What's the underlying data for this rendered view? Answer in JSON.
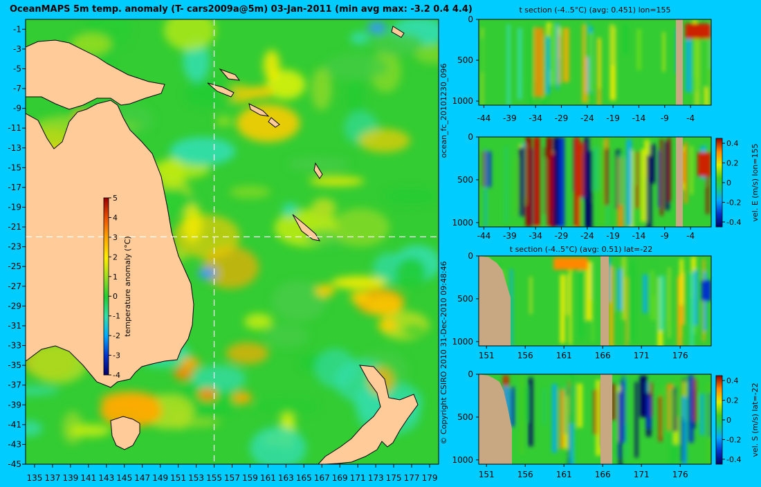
{
  "colors": {
    "background": "#00ccff",
    "land_map": "#ffcc99",
    "land_section": "#c8a882",
    "ocean_base": "#33cc33"
  },
  "texts": {
    "map_title": "OceanMAPS 5m temp. anomaly (T- cars2009a@5m) 03-Jan-2011 (min avg max: -3.2 0.4 4.4)",
    "side_left_upper": "ocean_fc_20101230_096",
    "side_left_lower": "© Copyright CSIRO 2010   31-Dec-2010 09:48:46"
  },
  "chart_data": [
    {
      "type": "heatmap",
      "title": "OceanMAPS 5m temp. anomaly (T- cars2009a@5m) 03-Jan-2011 (min avg max: -3.2 0.4 4.4)",
      "xticks": [
        "135",
        "137",
        "139",
        "141",
        "143",
        "145",
        "147",
        "149",
        "151",
        "153",
        "155",
        "157",
        "159",
        "161",
        "163",
        "165",
        "167",
        "169",
        "171",
        "173",
        "175",
        "177",
        "179"
      ],
      "yticks": [
        "-1",
        "-3",
        "-5",
        "-7",
        "-9",
        "-11",
        "-13",
        "-15",
        "-17",
        "-19",
        "-21",
        "-23",
        "-25",
        "-27",
        "-29",
        "-31",
        "-33",
        "-35",
        "-37",
        "-39",
        "-41",
        "-43",
        "-45"
      ],
      "xlim": [
        134,
        180
      ],
      "ylim": [
        -45,
        0
      ],
      "crosshair": {
        "lon": 155,
        "lat": -22
      },
      "stats": {
        "min": -3.2,
        "avg": 0.4,
        "max": 4.4
      },
      "colorbar": {
        "label": "temperature anomaly (°C)",
        "range": [
          -4,
          5
        ],
        "ticks": [
          "5",
          "4",
          "3",
          "2",
          "1",
          "0",
          "-1",
          "-2",
          "-3",
          "-4"
        ]
      }
    },
    {
      "type": "heatmap",
      "title": "t section (-4..5°C) (avg: 0.451) lon=155",
      "xticks": [
        "-44",
        "-39",
        "-34",
        "-29",
        "-24",
        "-19",
        "-14",
        "-9",
        "-4"
      ],
      "yticks": [
        "0",
        "500",
        "1000"
      ],
      "xlim": [
        -45,
        0
      ],
      "ylim": [
        1050,
        0
      ]
    },
    {
      "type": "heatmap",
      "title": "",
      "xticks": [
        "-44",
        "-39",
        "-34",
        "-29",
        "-24",
        "-19",
        "-14",
        "-9",
        "-4"
      ],
      "yticks": [
        "0",
        "500",
        "1000"
      ],
      "xlim": [
        -45,
        0
      ],
      "ylim": [
        1050,
        0
      ],
      "colorbar": {
        "label": "vel. E (m/s) lon=155",
        "range": [
          -0.45,
          0.45
        ],
        "ticks": [
          "0.4",
          "0.2",
          "0",
          "-0.2",
          "-0.4"
        ]
      }
    },
    {
      "type": "heatmap",
      "title": "t section (-4..5°C) (avg: 0.51) lat=-22",
      "xticks": [
        "151",
        "156",
        "161",
        "166",
        "171",
        "176"
      ],
      "yticks": [
        "0",
        "500",
        "1000"
      ],
      "xlim": [
        150,
        180
      ],
      "ylim": [
        1050,
        0
      ]
    },
    {
      "type": "heatmap",
      "title": "",
      "xticks": [
        "151",
        "156",
        "161",
        "166",
        "171",
        "176"
      ],
      "yticks": [
        "0",
        "500",
        "1000"
      ],
      "xlim": [
        150,
        180
      ],
      "ylim": [
        1050,
        0
      ],
      "colorbar": {
        "label": "vel. S (m/s) lat=-22",
        "range": [
          -0.45,
          0.45
        ],
        "ticks": [
          "0.4",
          "0.2",
          "0",
          "-0.2",
          "-0.4"
        ]
      }
    }
  ]
}
